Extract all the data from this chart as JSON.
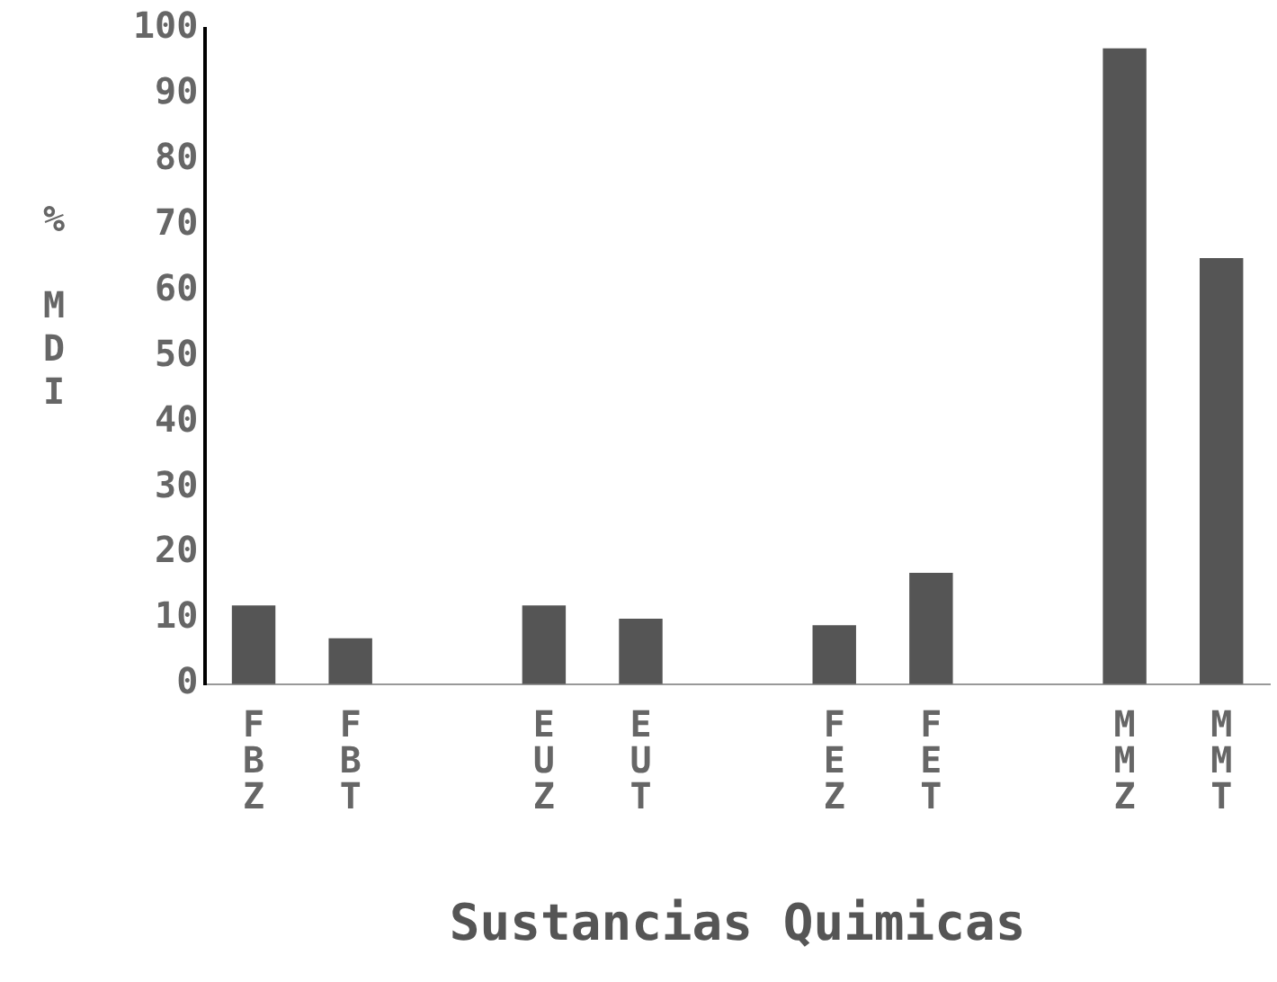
{
  "chart_data": {
    "type": "bar",
    "xlabel": "Sustancias Quimicas",
    "ylabel": "% MDI",
    "categories": [
      "FBZ",
      "FBT",
      null,
      "EUZ",
      "EUT",
      null,
      "FEZ",
      "FET",
      null,
      "MMZ",
      "MMT"
    ],
    "values": [
      12,
      7,
      null,
      12,
      10,
      null,
      9,
      17,
      null,
      97,
      65
    ],
    "color": "#555555",
    "ylim": [
      0,
      100
    ],
    "yticks": [
      0,
      10,
      20,
      30,
      40,
      50,
      60,
      70,
      80,
      90,
      100
    ],
    "grid": false,
    "legend": false
  }
}
